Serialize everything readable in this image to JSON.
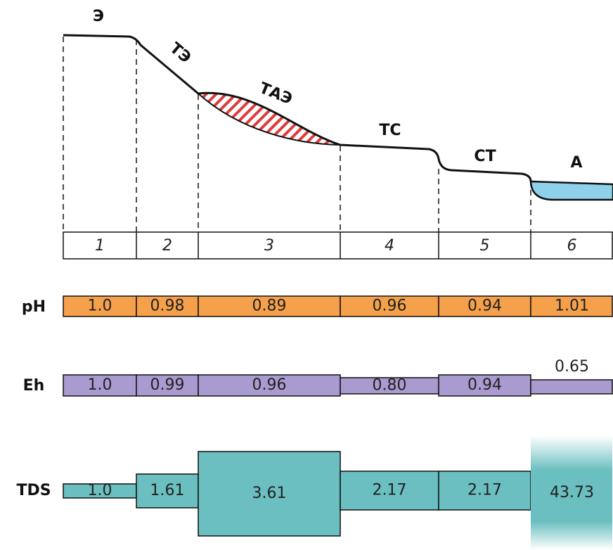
{
  "landscapes": [
    "Э",
    "ТЭ",
    "ТАЭ",
    "ТС",
    "СТ",
    "А"
  ],
  "zones": [
    "1",
    "2",
    "3",
    "4",
    "5",
    "6"
  ],
  "rows": [
    {
      "label": "pH",
      "values": [
        "1.0",
        "0.98",
        "0.89",
        "0.96",
        "0.94",
        "1.01"
      ]
    },
    {
      "label": "Eh",
      "values": [
        "1.0",
        "0.99",
        "0.96",
        "0.80",
        "0.94",
        "0.65"
      ]
    },
    {
      "label": "TDS",
      "values": [
        "1.0",
        "1.61",
        "3.61",
        "2.17",
        "2.17",
        "43.73"
      ]
    }
  ]
}
